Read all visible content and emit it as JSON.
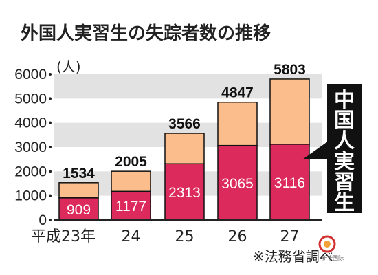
{
  "chart_data": {
    "type": "bar",
    "stacked": true,
    "title": "外国人実習生の失踪者数の推移",
    "unit_label": "(人)",
    "categories": [
      "平成23年",
      "24",
      "25",
      "26",
      "27"
    ],
    "totals": [
      1534,
      2005,
      3566,
      4847,
      5803
    ],
    "series": [
      {
        "values": [
          909,
          1177,
          2313,
          3065,
          3116
        ],
        "color": "#dc2a5c"
      },
      {
        "values": [
          625,
          828,
          1253,
          1782,
          2687
        ],
        "color": "#fbbd8b"
      }
    ],
    "ylim": [
      0,
      6000
    ],
    "yticks": [
      0,
      1000,
      2000,
      3000,
      4000,
      5000,
      6000
    ],
    "grid_band_color": "#e2e2e2",
    "callout": "中国人実習生",
    "source_note": "※法務省調べ"
  },
  "watermark": {
    "text": "新华国际",
    "color": "#d23030"
  }
}
